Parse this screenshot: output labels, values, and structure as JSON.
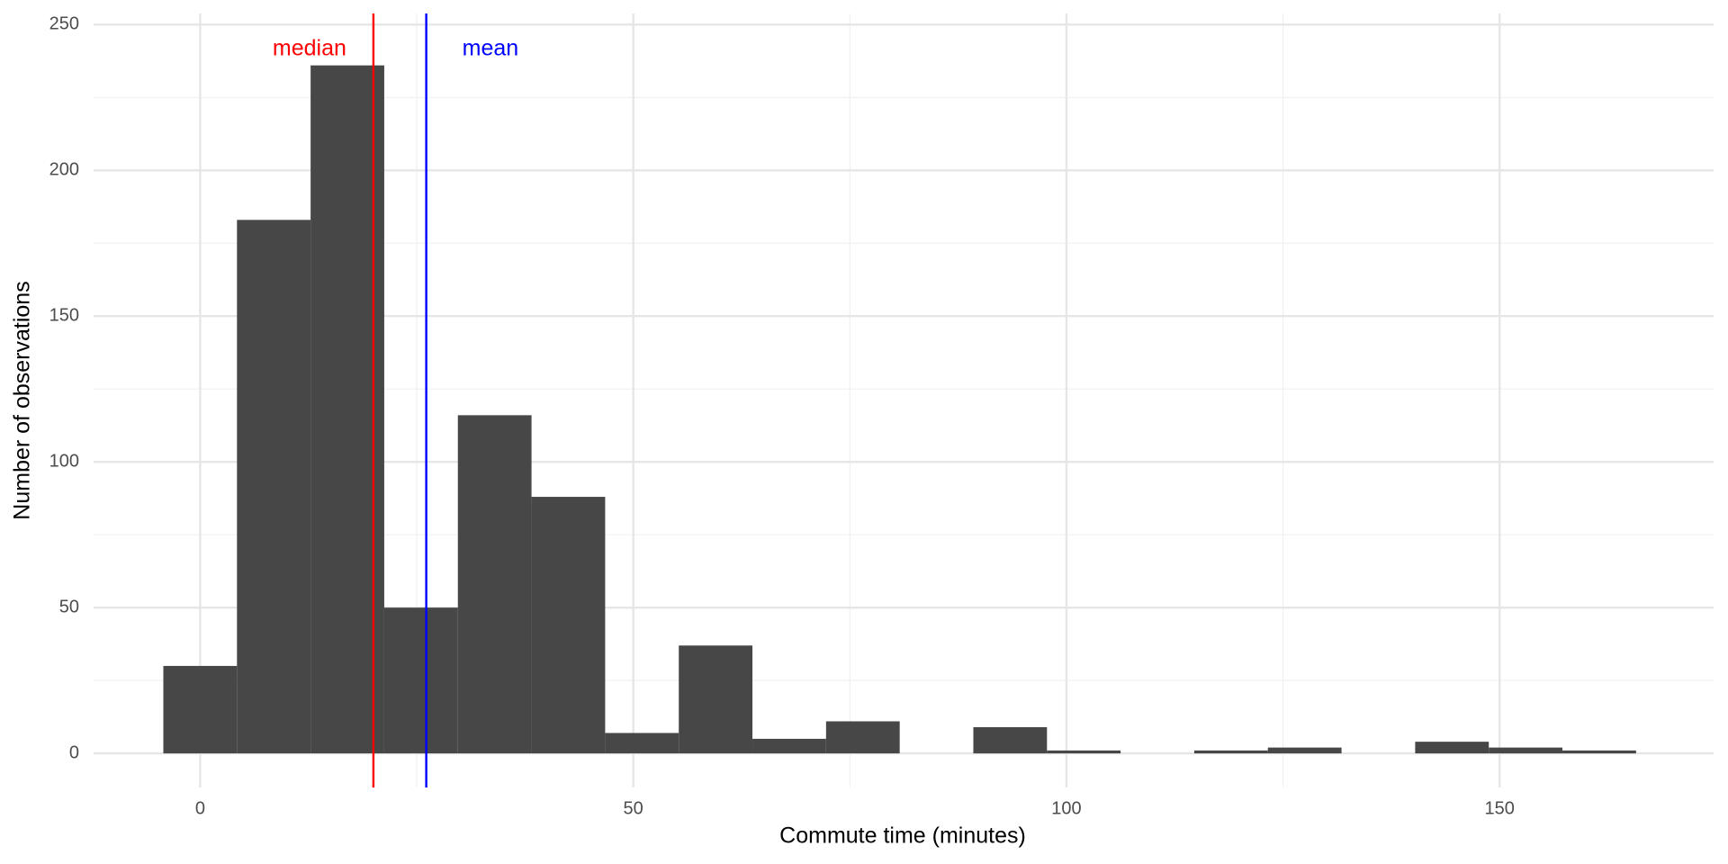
{
  "chart_data": {
    "type": "histogram",
    "xlabel": "Commute time (minutes)",
    "ylabel": "Number of observations",
    "bins": [
      -4.25,
      4.25,
      12.75,
      21.25,
      29.75,
      38.25,
      46.75,
      55.25,
      63.75,
      72.25,
      80.75,
      89.25,
      97.75,
      106.25,
      114.75,
      123.25,
      131.75,
      140.25,
      148.75,
      157.25,
      165.75
    ],
    "values": [
      30,
      183,
      236,
      50,
      116,
      88,
      7,
      37,
      5,
      11,
      0,
      9,
      1,
      0,
      1,
      2,
      0,
      4,
      2,
      1
    ],
    "color": "#474747",
    "xlim": [
      -12.3,
      174.7
    ],
    "xticks": [
      0,
      50,
      100,
      150
    ],
    "ylim": [
      -11.7,
      253.8
    ],
    "yticks": [
      0,
      50,
      100,
      150,
      200,
      250
    ],
    "grid": true,
    "vlines": [
      {
        "label": "median",
        "value": 20,
        "color": "#ff0000"
      },
      {
        "label": "mean",
        "value": 26.1,
        "color": "#0000ff"
      }
    ]
  }
}
